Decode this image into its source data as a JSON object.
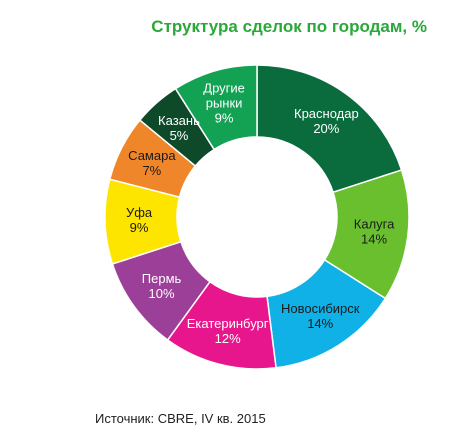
{
  "chart_data": {
    "type": "pie",
    "title": "Структура сделок по городам, %",
    "source": "Источник: CBRE, IV кв. 2015",
    "donut": true,
    "legend": "none",
    "slices": [
      {
        "label": "Краснодар",
        "value": 20,
        "value_label": "20%",
        "color": "#0a6b3d",
        "text_color": "#ffffff"
      },
      {
        "label": "Калуга",
        "value": 14,
        "value_label": "14%",
        "color": "#6abf2f",
        "text_color": "#1a1a1a"
      },
      {
        "label": "Новосибирск",
        "value": 14,
        "value_label": "14%",
        "color": "#0fb1e6",
        "text_color": "#1a1a1a"
      },
      {
        "label": "Екатеринбург",
        "value": 12,
        "value_label": "12%",
        "color": "#e8168c",
        "text_color": "#ffffff"
      },
      {
        "label": "Пермь",
        "value": 10,
        "value_label": "10%",
        "color": "#9c3f98",
        "text_color": "#ffffff"
      },
      {
        "label": "Уфа",
        "value": 9,
        "value_label": "9%",
        "color": "#fde500",
        "text_color": "#1a1a1a"
      },
      {
        "label": "Самара",
        "value": 7,
        "value_label": "7%",
        "color": "#f0862a",
        "text_color": "#1a1a1a"
      },
      {
        "label": "Казань",
        "value": 5,
        "value_label": "5%",
        "color": "#0e4a2a",
        "text_color": "#ffffff"
      },
      {
        "label": "Другие\nрынки",
        "value": 9,
        "value_label": "9%",
        "color": "#13a253",
        "text_color": "#ffffff"
      }
    ]
  }
}
